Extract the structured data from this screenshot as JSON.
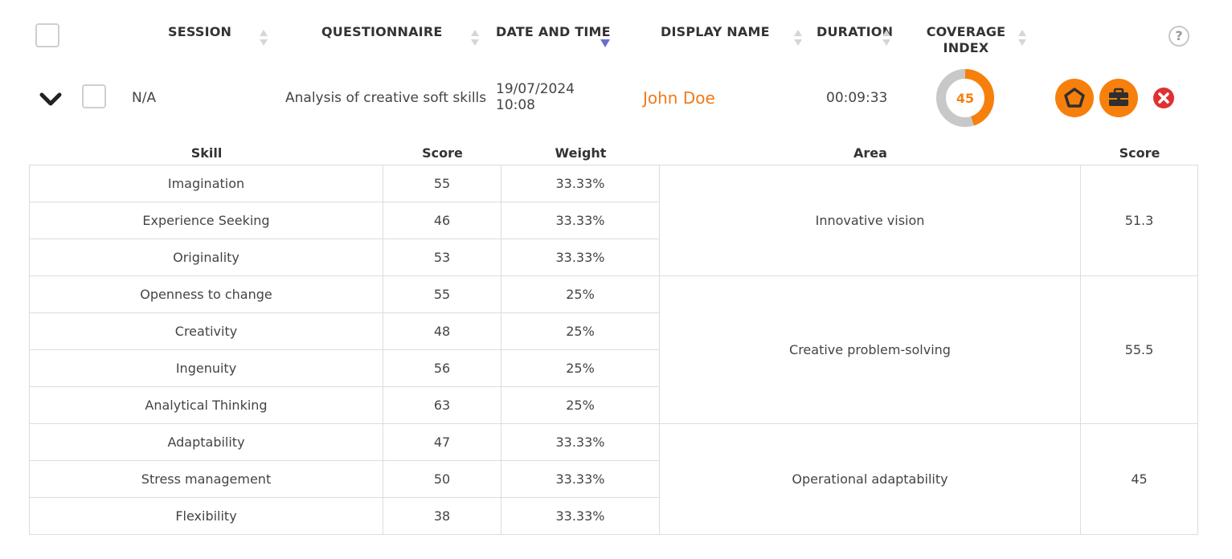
{
  "header": {
    "columns": {
      "session": "SESSION",
      "questionnaire": "QUESTIONNAIRE",
      "date_time": "DATE AND TIME",
      "display_name": "DISPLAY NAME",
      "duration": "DURATION",
      "coverage_line1": "COVERAGE",
      "coverage_line2": "INDEX"
    },
    "help_symbol": "?",
    "sorted_column": "date_time",
    "sort_direction": "descending"
  },
  "row": {
    "session": "N/A",
    "questionnaire": "Analysis of creative soft skills",
    "date": "19/07/2024",
    "time": "10:08",
    "display_name": "John Doe",
    "duration": "00:09:33",
    "coverage_index": "45",
    "coverage_fraction": 0.45,
    "expanded": true
  },
  "icons": {
    "expand": "chevron-down-icon",
    "action1": "pentagon-icon",
    "action2": "briefcase-icon",
    "delete": "close-circle-icon"
  },
  "colors": {
    "accent": "#f7800c",
    "name": "#f07a1a",
    "donut_track": "#c8c8c8",
    "sort_active": "#6a6fd0",
    "delete": "#e03030"
  },
  "skills_table": {
    "headers": {
      "skill": "Skill",
      "score": "Score",
      "weight": "Weight",
      "area": "Area",
      "area_score": "Score"
    },
    "groups": [
      {
        "area": "Innovative vision",
        "area_score": "51.3",
        "skills": [
          {
            "skill": "Imagination",
            "score": "55",
            "weight": "33.33%"
          },
          {
            "skill": "Experience Seeking",
            "score": "46",
            "weight": "33.33%"
          },
          {
            "skill": "Originality",
            "score": "53",
            "weight": "33.33%"
          }
        ]
      },
      {
        "area": "Creative problem-solving",
        "area_score": "55.5",
        "skills": [
          {
            "skill": "Openness to change",
            "score": "55",
            "weight": "25%"
          },
          {
            "skill": "Creativity",
            "score": "48",
            "weight": "25%"
          },
          {
            "skill": "Ingenuity",
            "score": "56",
            "weight": "25%"
          },
          {
            "skill": "Analytical Thinking",
            "score": "63",
            "weight": "25%"
          }
        ]
      },
      {
        "area": "Operational adaptability",
        "area_score": "45",
        "skills": [
          {
            "skill": "Adaptability",
            "score": "47",
            "weight": "33.33%"
          },
          {
            "skill": "Stress management",
            "score": "50",
            "weight": "33.33%"
          },
          {
            "skill": "Flexibility",
            "score": "38",
            "weight": "33.33%"
          }
        ]
      }
    ]
  }
}
